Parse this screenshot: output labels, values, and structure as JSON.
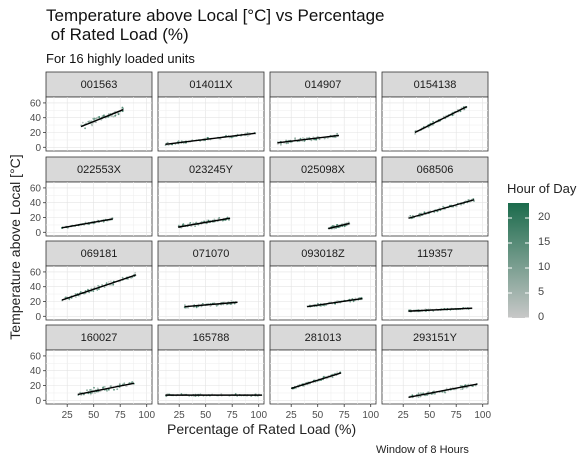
{
  "chart": {
    "title": "Temperature above Local [°C] vs Percentage\n of Rated Load (%)",
    "subtitle": "For 16 highly loaded units",
    "caption": "Window of  8  Hours",
    "xlabel": "Percentage of Rated Load (%)",
    "ylabel": "Temperature above Local [°C]",
    "legend_title": "Hour of Day"
  },
  "chart_data": {
    "type": "scatter",
    "facet_layout": "4x4 grid",
    "xlim": [
      5,
      105
    ],
    "ylim": [
      -5,
      68
    ],
    "x_ticks": [
      25,
      50,
      75,
      100
    ],
    "y_ticks": [
      0,
      20,
      40,
      60
    ],
    "color_scale": {
      "variable": "Hour of Day",
      "min": 0,
      "max": 23,
      "low_color": "#c8c8c8",
      "high_color": "#1b6b4c",
      "ticks": [
        0,
        5,
        10,
        15,
        20
      ]
    },
    "panels": [
      {
        "unit": "001563",
        "x_range": [
          38,
          78
        ],
        "fit": [
          [
            38,
            28
          ],
          [
            78,
            51
          ]
        ],
        "spread": 6
      },
      {
        "unit": "014011X",
        "x_range": [
          12,
          97
        ],
        "fit": [
          [
            12,
            4
          ],
          [
            97,
            19
          ]
        ],
        "spread": 3
      },
      {
        "unit": "014907",
        "x_range": [
          12,
          70
        ],
        "fit": [
          [
            12,
            6
          ],
          [
            70,
            16
          ]
        ],
        "spread": 4
      },
      {
        "unit": "0154138",
        "x_range": [
          36,
          85
        ],
        "fit": [
          [
            36,
            20
          ],
          [
            85,
            55
          ]
        ],
        "spread": 3
      },
      {
        "unit": "022553X",
        "x_range": [
          20,
          68
        ],
        "fit": [
          [
            20,
            6
          ],
          [
            68,
            18
          ]
        ],
        "spread": 2
      },
      {
        "unit": "023245Y",
        "x_range": [
          24,
          73
        ],
        "fit": [
          [
            24,
            7
          ],
          [
            73,
            19
          ]
        ],
        "spread": 4
      },
      {
        "unit": "025098X",
        "x_range": [
          60,
          80
        ],
        "fit": [
          [
            60,
            5
          ],
          [
            80,
            12
          ]
        ],
        "spread": 3
      },
      {
        "unit": "068506",
        "x_range": [
          30,
          92
        ],
        "fit": [
          [
            30,
            19
          ],
          [
            92,
            44
          ]
        ],
        "spread": 3
      },
      {
        "unit": "069181",
        "x_range": [
          20,
          90
        ],
        "fit": [
          [
            20,
            22
          ],
          [
            90,
            56
          ]
        ],
        "spread": 4
      },
      {
        "unit": "071070",
        "x_range": [
          30,
          80
        ],
        "fit": [
          [
            30,
            13
          ],
          [
            80,
            19
          ]
        ],
        "spread": 3
      },
      {
        "unit": "093018Z",
        "x_range": [
          40,
          92
        ],
        "fit": [
          [
            40,
            13
          ],
          [
            92,
            24
          ]
        ],
        "spread": 3
      },
      {
        "unit": "119357",
        "x_range": [
          30,
          90
        ],
        "fit": [
          [
            30,
            7
          ],
          [
            90,
            11
          ]
        ],
        "spread": 2
      },
      {
        "unit": "160027",
        "x_range": [
          35,
          88
        ],
        "fit": [
          [
            35,
            8
          ],
          [
            88,
            23
          ]
        ],
        "spread": 5
      },
      {
        "unit": "165788",
        "x_range": [
          12,
          103
        ],
        "fit": [
          [
            12,
            7
          ],
          [
            103,
            7
          ]
        ],
        "spread": 2
      },
      {
        "unit": "281013",
        "x_range": [
          25,
          72
        ],
        "fit": [
          [
            25,
            16
          ],
          [
            72,
            37
          ]
        ],
        "spread": 3
      },
      {
        "unit": "293151Y",
        "x_range": [
          30,
          95
        ],
        "fit": [
          [
            30,
            4
          ],
          [
            95,
            22
          ]
        ],
        "spread": 4
      }
    ]
  }
}
